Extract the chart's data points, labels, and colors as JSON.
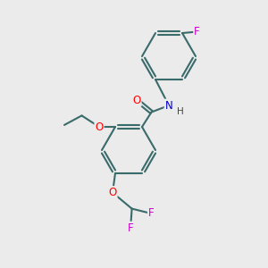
{
  "bg_color": "#ebebeb",
  "bond_color": "#3a6b6b",
  "bond_width": 1.5,
  "atom_colors": {
    "O": "#ff0000",
    "N": "#0000cc",
    "F": "#cc00cc",
    "H": "#444444"
  },
  "font_size": 8.5
}
